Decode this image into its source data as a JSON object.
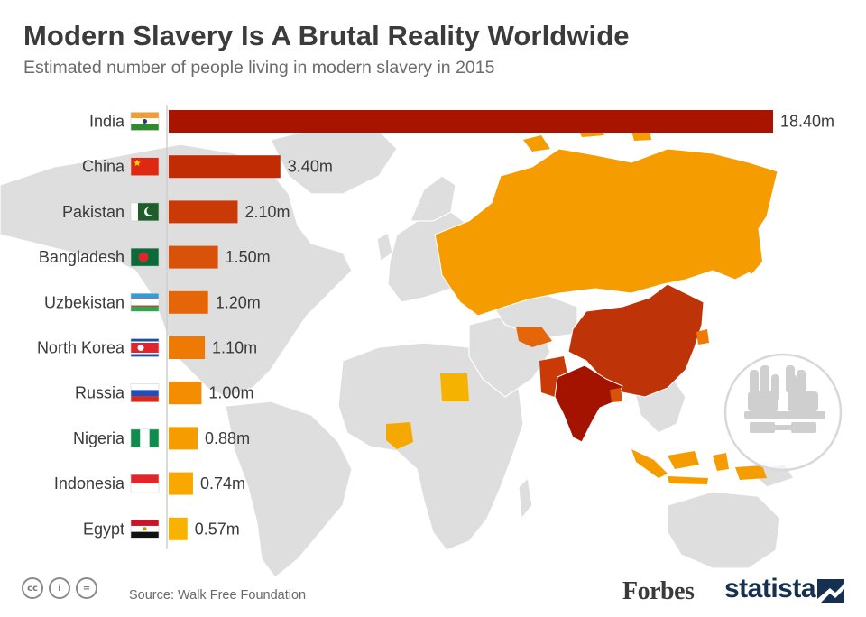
{
  "header": {
    "title": "Modern Slavery Is A Brutal Reality Worldwide",
    "subtitle": "Estimated number of people living in modern slavery in 2015"
  },
  "footer": {
    "source": "Source: Walk Free Foundation",
    "forbes": "Forbes",
    "statista": "statista",
    "license_icons": [
      "cc-icon",
      "by-icon",
      "nd-icon"
    ],
    "license_glyphs": [
      "cc",
      "i",
      "="
    ]
  },
  "colors": {
    "map_land": "#dedede",
    "highlight_orange": "#f59c00",
    "highlight_red": "#c1310e",
    "highlight_darkred": "#a31300"
  },
  "chart_data": {
    "type": "bar",
    "orientation": "horizontal",
    "categories": [
      "India",
      "China",
      "Pakistan",
      "Bangladesh",
      "Uzbekistan",
      "North Korea",
      "Russia",
      "Nigeria",
      "Indonesia",
      "Egypt"
    ],
    "values": [
      18.4,
      3.4,
      2.1,
      1.5,
      1.2,
      1.1,
      1.0,
      0.88,
      0.74,
      0.57
    ],
    "value_labels": [
      "18.40m",
      "3.40m",
      "2.10m",
      "1.50m",
      "1.20m",
      "1.10m",
      "1.00m",
      "0.88m",
      "0.74m",
      "0.57m"
    ],
    "bar_colors": [
      "#a81400",
      "#c22c05",
      "#c93a07",
      "#d8520a",
      "#e46608",
      "#ee7a05",
      "#f58d02",
      "#f79c00",
      "#f8a800",
      "#f9b200"
    ],
    "title": "Modern Slavery Is A Brutal Reality Worldwide",
    "subtitle": "Estimated number of people living in modern slavery in 2015",
    "unit": "m",
    "xlim": [
      0,
      18.4
    ],
    "grid": false,
    "legend": "none"
  }
}
